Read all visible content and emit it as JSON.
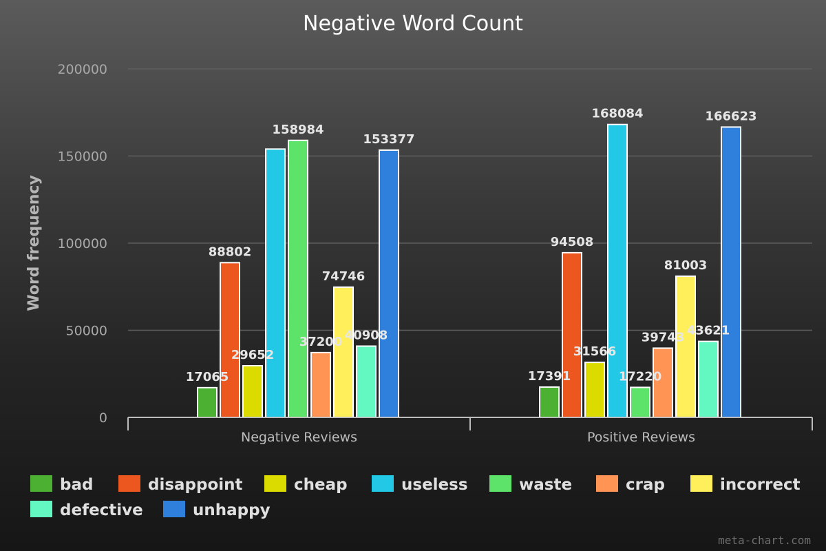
{
  "chart_data": {
    "type": "bar",
    "title": "Negative Word Count",
    "xlabel": "",
    "ylabel": "Word frequency",
    "ylim": [
      0,
      200000
    ],
    "yticks": [
      "0",
      "50000",
      "100000",
      "150000",
      "200000"
    ],
    "grid": true,
    "legend_position": "bottom",
    "categories": [
      "Negative Reviews",
      "Positive Reviews"
    ],
    "series": [
      {
        "name": "bad",
        "color": "#4cb032",
        "values": [
          17065,
          17391
        ]
      },
      {
        "name": "disappoint",
        "color": "#ec5720",
        "values": [
          88802,
          94508
        ]
      },
      {
        "name": "cheap",
        "color": "#dbdb00",
        "values": [
          29652,
          31566
        ]
      },
      {
        "name": "useless",
        "color": "#22c8e5",
        "values": [
          154000,
          168084
        ]
      },
      {
        "name": "waste",
        "color": "#5ee36a",
        "values": [
          158984,
          17220
        ]
      },
      {
        "name": "crap",
        "color": "#ff9455",
        "values": [
          37200,
          39743
        ]
      },
      {
        "name": "incorrect",
        "color": "#ffef5a",
        "values": [
          74746,
          81003
        ]
      },
      {
        "name": "defective",
        "color": "#63f7c2",
        "values": [
          40908,
          43621
        ]
      },
      {
        "name": "unhappy",
        "color": "#2f80dc",
        "values": [
          153377,
          166623
        ]
      }
    ],
    "data_labels": [
      [
        "17065",
        "17391"
      ],
      [
        "88802",
        "94508"
      ],
      [
        "29652",
        "31566"
      ],
      [
        "",
        "168084"
      ],
      [
        "158984",
        "17220"
      ],
      [
        "37200",
        "39743"
      ],
      [
        "74746",
        "81003"
      ],
      [
        "40908",
        "43621"
      ],
      [
        "153377",
        "166623"
      ]
    ]
  },
  "credit": "meta-chart.com"
}
